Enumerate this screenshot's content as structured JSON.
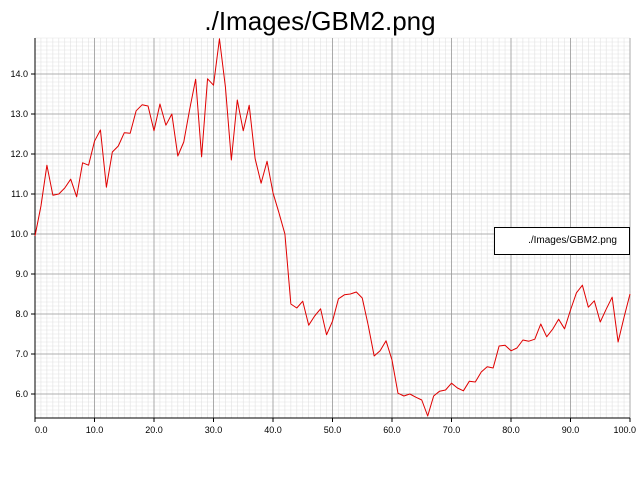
{
  "chart_data": {
    "type": "line",
    "title": "./Images/GBM2.png",
    "xlabel": "",
    "ylabel": "",
    "xlim": [
      0,
      100
    ],
    "ylim": [
      5.4,
      14.9
    ],
    "xticks": [
      "0.0",
      "10.0",
      "20.0",
      "30.0",
      "40.0",
      "50.0",
      "60.0",
      "70.0",
      "80.0",
      "90.0",
      "100.0"
    ],
    "yticks": [
      "6.0",
      "7.0",
      "8.0",
      "9.0",
      "10.0",
      "11.0",
      "12.0",
      "13.0",
      "14.0"
    ],
    "grid": true,
    "legend": {
      "position": "right",
      "entries": [
        "./Images/GBM2.png"
      ]
    },
    "series": [
      {
        "name": "./Images/GBM2.png",
        "color": "#e00000",
        "x": [
          0,
          1,
          2,
          3,
          4,
          5,
          6,
          7,
          8,
          9,
          10,
          11,
          12,
          13,
          14,
          15,
          16,
          17,
          18,
          19,
          20,
          21,
          22,
          23,
          24,
          25,
          26,
          27,
          28,
          29,
          30,
          31,
          32,
          33,
          34,
          35,
          36,
          37,
          38,
          39,
          40,
          41,
          42,
          43,
          44,
          45,
          46,
          47,
          48,
          49,
          50,
          51,
          52,
          53,
          54,
          55,
          56,
          57,
          58,
          59,
          60,
          61,
          62,
          63,
          64,
          65,
          66,
          67,
          68,
          69,
          70,
          71,
          72,
          73,
          74,
          75,
          76,
          77,
          78,
          79,
          80,
          81,
          82,
          83,
          84,
          85,
          86,
          87,
          88,
          89,
          90,
          91,
          92,
          93,
          94,
          95,
          96,
          97,
          98,
          99,
          100
        ],
        "y": [
          9.95,
          10.7,
          11.72,
          10.97,
          11.0,
          11.15,
          11.37,
          10.93,
          11.78,
          11.72,
          12.32,
          12.6,
          11.17,
          12.05,
          12.2,
          12.53,
          12.52,
          13.08,
          13.23,
          13.2,
          12.58,
          13.25,
          12.72,
          13.0,
          11.95,
          12.3,
          13.12,
          13.87,
          11.93,
          13.88,
          13.72,
          14.88,
          13.68,
          11.85,
          13.35,
          12.58,
          13.22,
          11.88,
          11.27,
          11.82,
          11.03,
          10.53,
          10.0,
          8.25,
          8.15,
          8.32,
          7.72,
          7.95,
          8.13,
          7.48,
          7.82,
          8.38,
          8.48,
          8.5,
          8.55,
          8.4,
          7.72,
          6.95,
          7.08,
          7.33,
          6.85,
          6.02,
          5.95,
          6.0,
          5.92,
          5.85,
          5.45,
          5.95,
          6.07,
          6.1,
          6.27,
          6.15,
          6.08,
          6.32,
          6.3,
          6.55,
          6.68,
          6.65,
          7.2,
          7.22,
          7.08,
          7.15,
          7.35,
          7.32,
          7.37,
          7.75,
          7.43,
          7.62,
          7.87,
          7.63,
          8.1,
          8.53,
          8.72,
          8.17,
          8.33,
          7.8,
          8.12,
          8.42,
          7.3,
          7.92,
          8.5
        ]
      }
    ]
  }
}
